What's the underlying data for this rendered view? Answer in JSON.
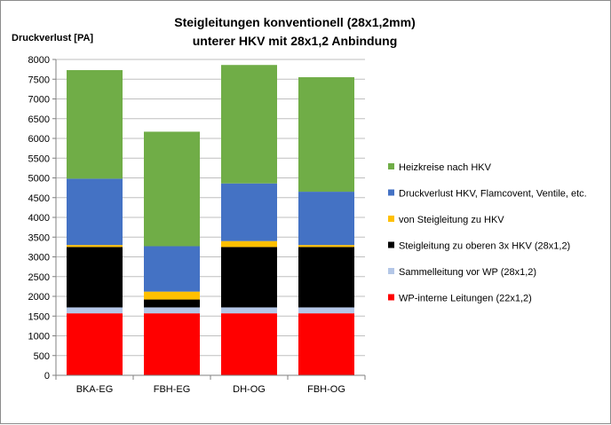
{
  "chart_data": {
    "type": "bar",
    "stacked": true,
    "title": [
      "Steigleitungen konventionell (28x1,2mm)",
      "unterer HKV mit 28x1,2 Anbindung"
    ],
    "ylabel": "Druckverlust  [PA]",
    "xlabel": "",
    "ylim": [
      0,
      8000
    ],
    "yticks": [
      0,
      500,
      1000,
      1500,
      2000,
      2500,
      3000,
      3500,
      4000,
      4500,
      5000,
      5500,
      6000,
      6500,
      7000,
      7500,
      8000
    ],
    "grid": true,
    "legend_position": "right",
    "categories": [
      "BKA-EG",
      "FBH-EG",
      "DH-OG",
      "FBH-OG"
    ],
    "series": [
      {
        "name": "WP-interne Leitungen (22x1,2)",
        "color": "#ff0000",
        "values": [
          1570,
          1570,
          1570,
          1570
        ]
      },
      {
        "name": "Sammelleitung vor WP (28x1,2)",
        "color": "#b4c7e7",
        "values": [
          150,
          150,
          150,
          150
        ]
      },
      {
        "name": "Steigleitung zu oberen 3x HKV (28x1,2)",
        "color": "#000000",
        "values": [
          1530,
          200,
          1530,
          1530
        ]
      },
      {
        "name": "von Steigleitung zu HKV",
        "color": "#ffc000",
        "values": [
          50,
          200,
          150,
          50
        ]
      },
      {
        "name": "Druckverlust HKV, Flamcovent, Ventile, etc.",
        "color": "#4472c4",
        "values": [
          1680,
          1150,
          1460,
          1350
        ]
      },
      {
        "name": "Heizkreise nach HKV",
        "color": "#70ad47",
        "values": [
          2750,
          2900,
          3000,
          2900
        ]
      }
    ]
  }
}
